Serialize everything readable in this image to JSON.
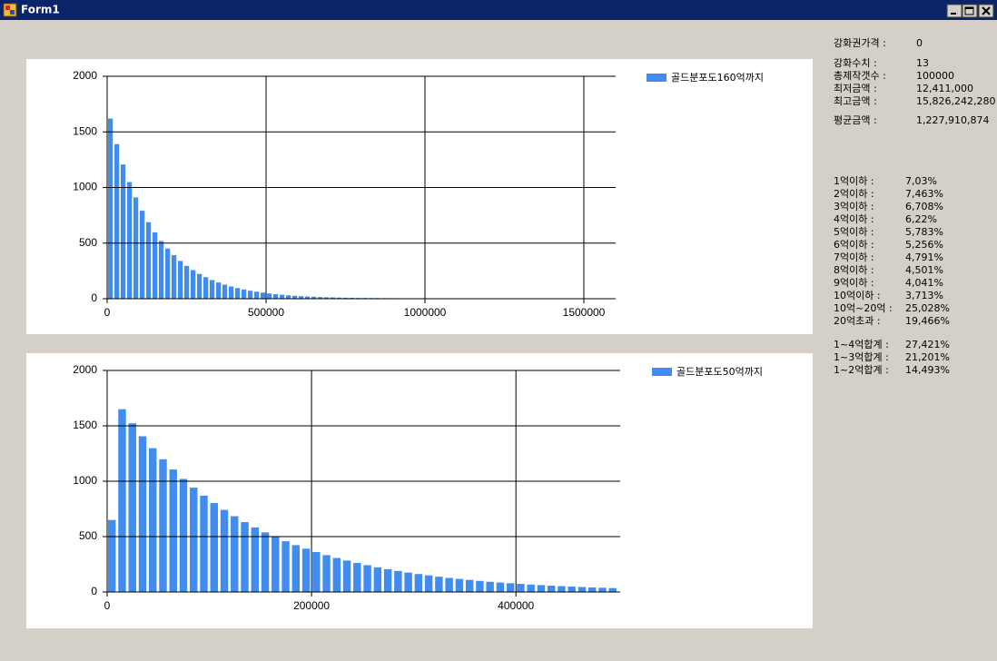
{
  "window": {
    "title": "Form1"
  },
  "chart_data": [
    {
      "type": "bar",
      "x": [
        0,
        20000,
        40000,
        60000,
        80000,
        100000,
        120000,
        140000,
        160000,
        180000,
        200000,
        220000,
        240000,
        260000,
        280000,
        300000,
        320000,
        340000,
        360000,
        380000,
        400000,
        420000,
        440000,
        460000,
        480000,
        500000,
        520000,
        540000,
        560000,
        580000,
        600000,
        620000,
        640000,
        660000,
        680000,
        700000,
        720000,
        740000,
        760000,
        780000,
        800000,
        820000,
        840000,
        860000,
        880000,
        900000,
        920000,
        940000,
        960000,
        980000,
        1000000,
        1020000,
        1040000,
        1060000,
        1080000,
        1100000,
        1120000,
        1140000,
        1160000,
        1180000,
        1200000,
        1220000,
        1240000,
        1260000,
        1280000,
        1300000,
        1320000,
        1340000,
        1360000,
        1380000,
        1400000,
        1420000,
        1440000,
        1460000,
        1480000,
        1500000,
        1520000,
        1540000,
        1560000,
        1580000
      ],
      "series": [
        {
          "name": "골드분포도160억까지",
          "color": "#418cf0",
          "values": [
            1620,
            1390,
            1207,
            1049,
            911,
            791,
            688,
            597,
            519,
            451,
            392,
            340,
            295,
            257,
            223,
            194,
            168,
            146,
            127,
            110,
            96,
            83,
            72,
            63,
            55,
            47,
            41,
            36,
            31,
            27,
            23,
            20,
            18,
            15,
            13,
            12,
            10,
            9,
            8,
            7,
            7,
            6,
            6,
            5,
            5,
            5,
            4,
            4,
            4,
            3,
            3,
            3,
            3,
            2,
            2,
            2,
            2,
            2,
            2,
            2,
            1,
            1,
            1,
            1,
            1,
            1,
            1,
            1,
            1,
            1,
            1,
            1,
            1,
            0,
            0,
            1,
            0,
            0,
            0,
            0
          ]
        }
      ],
      "xlim": [
        0,
        1600000
      ],
      "xticks": [
        0,
        500000,
        1000000,
        1500000
      ],
      "ylim": [
        0,
        2000
      ],
      "yticks": [
        0,
        500,
        1000,
        1500,
        2000
      ],
      "grid": true
    },
    {
      "type": "bar",
      "x": [
        0,
        10000,
        20000,
        30000,
        40000,
        50000,
        60000,
        70000,
        80000,
        90000,
        100000,
        110000,
        120000,
        130000,
        140000,
        150000,
        160000,
        170000,
        180000,
        190000,
        200000,
        210000,
        220000,
        230000,
        240000,
        250000,
        260000,
        270000,
        280000,
        290000,
        300000,
        310000,
        320000,
        330000,
        340000,
        350000,
        360000,
        370000,
        380000,
        390000,
        400000,
        410000,
        420000,
        430000,
        440000,
        450000,
        460000,
        470000,
        480000,
        490000
      ],
      "series": [
        {
          "name": "골드분포도50억까지",
          "color": "#418cf0",
          "values": [
            650,
            1650,
            1523,
            1406,
            1298,
            1198,
            1106,
            1021,
            942,
            870,
            803,
            741,
            684,
            631,
            583,
            538,
            497,
            458,
            423,
            391,
            361,
            333,
            307,
            284,
            262,
            242,
            223,
            206,
            190,
            175,
            162,
            150,
            138,
            127,
            118,
            109,
            100,
            92,
            85,
            79,
            73,
            67,
            62,
            57,
            53,
            49,
            45,
            41,
            38,
            35
          ]
        }
      ],
      "xlim": [
        0,
        502000
      ],
      "xticks": [
        0,
        200000,
        400000
      ],
      "ylim": [
        0,
        2000
      ],
      "yticks": [
        0,
        500,
        1000,
        1500,
        2000
      ],
      "grid": true
    }
  ],
  "info": [
    [
      {
        "label": "강화권가격 :",
        "value": "0"
      }
    ],
    [
      {
        "label": "강화수치 :",
        "value": "13"
      },
      {
        "label": "총제작갯수 :",
        "value": "100000"
      },
      {
        "label": "최저금액 :",
        "value": "12,411,000"
      },
      {
        "label": "최고금액 :",
        "value": "15,826,242,280"
      }
    ],
    [
      {
        "label": "평균금액 :",
        "value": "1,227,910,874"
      }
    ],
    [
      {
        "label": "1억이하 :",
        "value": "7,03%"
      },
      {
        "label": "2억이하 :",
        "value": "7,463%"
      },
      {
        "label": "3억이하 :",
        "value": "6,708%"
      },
      {
        "label": "4억이하 :",
        "value": "6,22%"
      },
      {
        "label": "5억이하 :",
        "value": "5,783%"
      },
      {
        "label": "6억이하 :",
        "value": "5,256%"
      },
      {
        "label": "7억이하 :",
        "value": "4,791%"
      },
      {
        "label": "8억이하 :",
        "value": "4,501%"
      },
      {
        "label": "9억이하 :",
        "value": "4,041%"
      },
      {
        "label": "10억이하 :",
        "value": "3,713%"
      },
      {
        "label": "10억~20억 :",
        "value": "25,028%"
      },
      {
        "label": "20억초과 :",
        "value": "19,466%"
      }
    ],
    [
      {
        "label": "1~4억합계 :",
        "value": "27,421%"
      },
      {
        "label": "1~3억합계 :",
        "value": "21,201%"
      },
      {
        "label": "1~2억합계 :",
        "value": "14,493%"
      }
    ]
  ]
}
